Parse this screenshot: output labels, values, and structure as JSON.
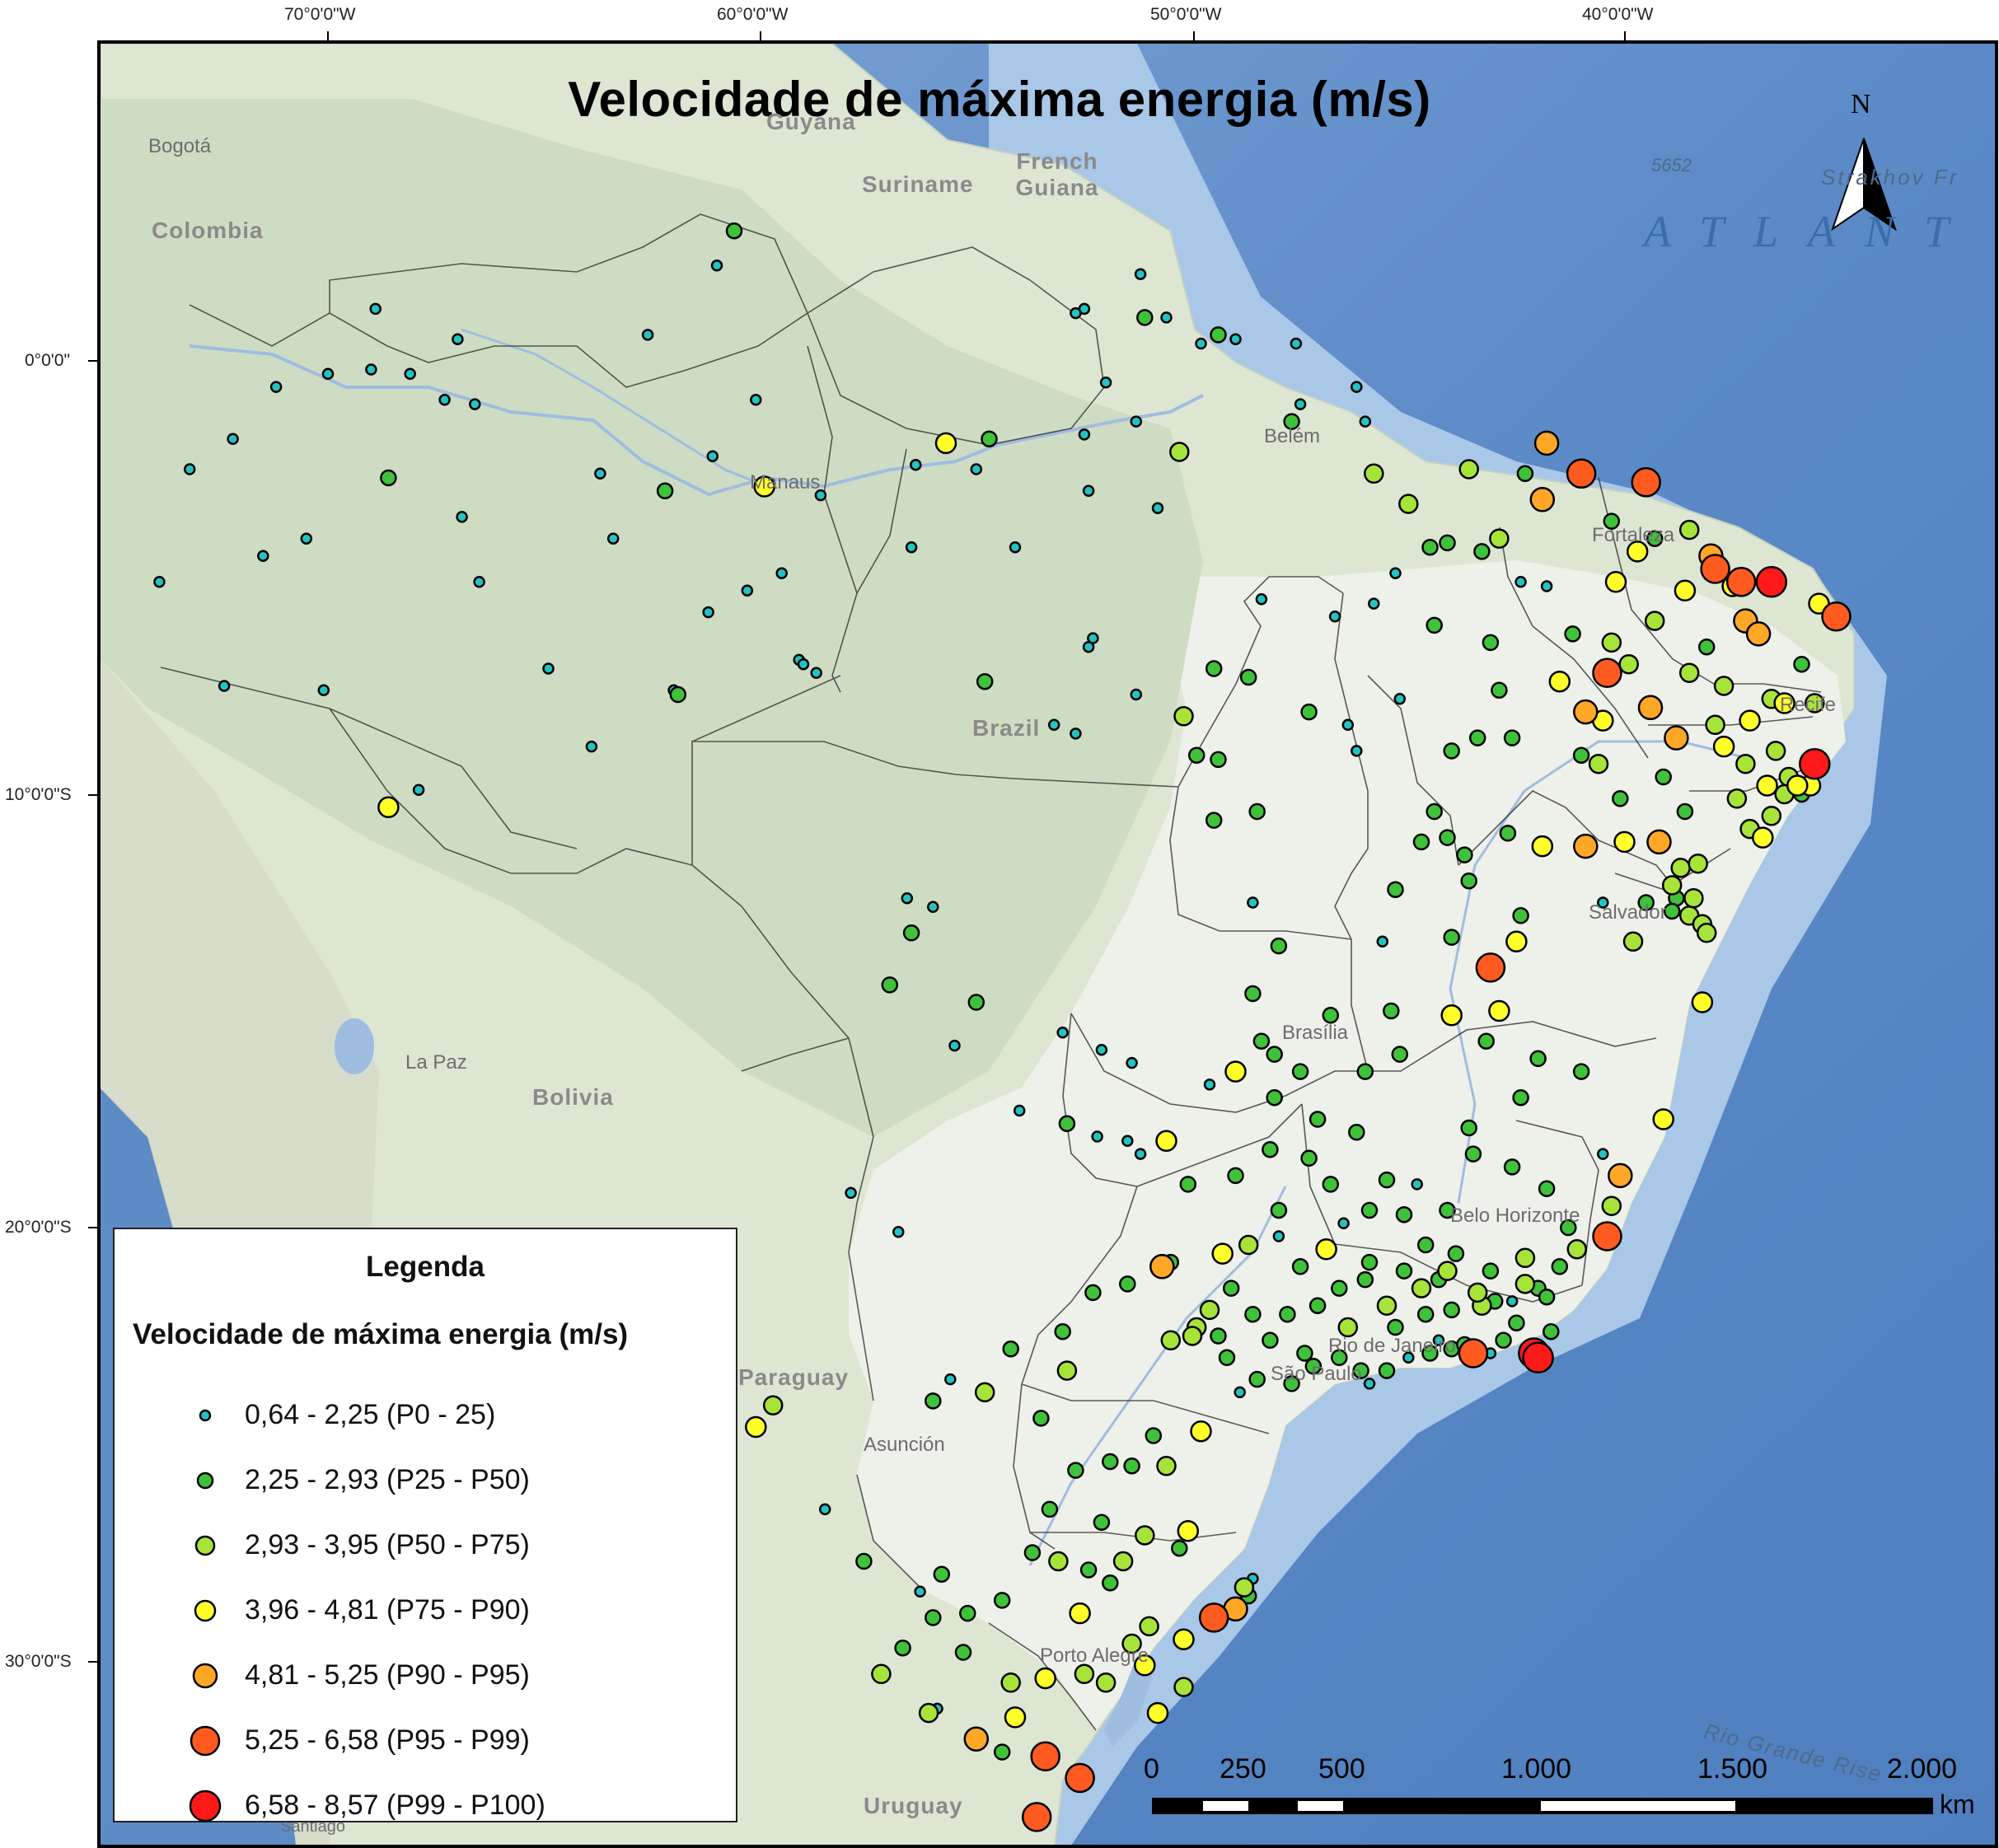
{
  "title": "Velocidade de máxima energia (m/s)",
  "north_label": "N",
  "grid_labels": {
    "longitude": [
      "70°0'0\"W",
      "60°0'0\"W",
      "50°0'0\"W",
      "40°0'0\"W"
    ],
    "latitude": [
      "0°0'0\"",
      "10°0'0\"S",
      "20°0'0\"S",
      "30°0'0\"S"
    ]
  },
  "basemap_labels": {
    "cities": [
      "Bogotá",
      "Manaus",
      "Belém",
      "Fortaleza",
      "Recife",
      "Salvador",
      "Brasília",
      "Belo Horizonte",
      "Rio de Janeiro",
      "São Paulo",
      "Porto Alegre",
      "La Paz",
      "Asunción",
      "Santiago"
    ],
    "countries": [
      "Colombia",
      "Guyana",
      "Suriname",
      "French Guiana",
      "Brazil",
      "Bolivia",
      "Paraguay",
      "Uruguay"
    ],
    "ocean": [
      "ATLANT",
      "5652",
      "Strakhov Fr",
      "Rio Grande Rise"
    ]
  },
  "legend": {
    "title": "Legenda",
    "subtitle": "Velocidade de máxima energia (m/s)",
    "classes": [
      {
        "label": "0,64 - 2,25 (P0 - 25)",
        "color": "#23c3c3",
        "size": 1
      },
      {
        "label": "2,25 - 2,93 (P25 - P50)",
        "color": "#3fc23a",
        "size": 2
      },
      {
        "label": "2,93 - 3,95 (P50 - P75)",
        "color": "#a8e33a",
        "size": 3
      },
      {
        "label": "3,96 - 4,81 (P75 - P90)",
        "color": "#ffff2a",
        "size": 4
      },
      {
        "label": "4,81 - 5,25 (P90 - P95)",
        "color": "#ffa726",
        "size": 5
      },
      {
        "label": "5,25 - 6,58 (P95 - P99)",
        "color": "#ff5a1f",
        "size": 6
      },
      {
        "label": "6,58 - 8,57 (P99 - P100)",
        "color": "#ff1a1a",
        "size": 7
      }
    ]
  },
  "scale_bar": {
    "labels": [
      "0",
      "250",
      "500",
      "1.000",
      "1.500",
      "2.000"
    ],
    "unit": "km"
  },
  "stations": [
    [
      -68.6,
      -2.7,
      2
    ],
    [
      -70.5,
      -4.1,
      1
    ],
    [
      -73.9,
      -5.1,
      1
    ],
    [
      -71.5,
      -4.5,
      1
    ],
    [
      -67.0,
      0.5,
      1
    ],
    [
      -68.9,
      1.2,
      1
    ],
    [
      -66.9,
      -3.6,
      1
    ],
    [
      -62.2,
      -3.0,
      2
    ],
    [
      -63.7,
      -2.6,
      1
    ],
    [
      -61.1,
      -2.2,
      1
    ],
    [
      -59.9,
      -2.9,
      4
    ],
    [
      -58.6,
      -3.1,
      1
    ],
    [
      -55.0,
      -2.5,
      1
    ],
    [
      -54.7,
      -1.8,
      2
    ],
    [
      -55.7,
      -1.9,
      4
    ],
    [
      -56.4,
      -2.4,
      1
    ],
    [
      -52.5,
      -1.7,
      1
    ],
    [
      -51.3,
      -1.4,
      1
    ],
    [
      -50.3,
      -2.1,
      3
    ],
    [
      -50.8,
      -3.4,
      1
    ],
    [
      -52.4,
      -3.0,
      1
    ],
    [
      -54.1,
      -4.3,
      1
    ],
    [
      -56.5,
      -4.3,
      1
    ],
    [
      -63.4,
      -4.1,
      1
    ],
    [
      -59.5,
      -4.9,
      1
    ],
    [
      -60.3,
      -5.3,
      1
    ],
    [
      -61.2,
      -5.8,
      1
    ],
    [
      -59.1,
      -6.9,
      1
    ],
    [
      -59.0,
      -7.0,
      1
    ],
    [
      -62.0,
      -7.6,
      1
    ],
    [
      -64.9,
      -7.1,
      1
    ],
    [
      -66.5,
      -5.1,
      1
    ],
    [
      -63.9,
      -8.9,
      1
    ],
    [
      -72.4,
      -7.5,
      1
    ],
    [
      -70.1,
      -7.6,
      1
    ],
    [
      -67.9,
      -9.9,
      1
    ],
    [
      -68.6,
      -10.3,
      4
    ],
    [
      -61.9,
      -7.7,
      2
    ],
    [
      -58.7,
      -7.2,
      1
    ],
    [
      -54.8,
      -7.4,
      2
    ],
    [
      -52.4,
      -6.6,
      1
    ],
    [
      -56.0,
      -12.6,
      1
    ],
    [
      -55.5,
      -15.8,
      1
    ],
    [
      -54.0,
      -17.3,
      1
    ],
    [
      -56.5,
      -13.2,
      2
    ],
    [
      -57.0,
      -14.4,
      2
    ],
    [
      -56.6,
      -12.4,
      1
    ],
    [
      -55.0,
      -14.8,
      2
    ],
    [
      -53.0,
      -15.5,
      1
    ],
    [
      -52.1,
      -15.9,
      1
    ],
    [
      -51.4,
      -16.2,
      1
    ],
    [
      -51.2,
      -18.3,
      1
    ],
    [
      -49.6,
      -16.7,
      1
    ],
    [
      -49.0,
      -16.4,
      4
    ],
    [
      -48.1,
      -16.0,
      2
    ],
    [
      -47.5,
      -16.4,
      2
    ],
    [
      -46.8,
      -15.1,
      2
    ],
    [
      -46.0,
      -16.4,
      2
    ],
    [
      -45.2,
      -16.0,
      2
    ],
    [
      -44.0,
      -15.1,
      4
    ],
    [
      -43.2,
      -15.7,
      2
    ],
    [
      -42.0,
      -16.1,
      2
    ],
    [
      -42.4,
      -17.0,
      2
    ],
    [
      -43.6,
      -17.7,
      2
    ],
    [
      -41.0,
      -16.4,
      2
    ],
    [
      -40.5,
      -18.3,
      1
    ],
    [
      -40.1,
      -18.8,
      5
    ],
    [
      -40.3,
      -19.5,
      3
    ],
    [
      -40.4,
      -20.2,
      6
    ],
    [
      -41.1,
      -20.5,
      3
    ],
    [
      -41.5,
      -20.9,
      2
    ],
    [
      -42.0,
      -21.4,
      2
    ],
    [
      -42.6,
      -21.7,
      1
    ],
    [
      -43.3,
      -21.8,
      3
    ],
    [
      -44.3,
      -21.2,
      2
    ],
    [
      -45.1,
      -21.0,
      2
    ],
    [
      -45.9,
      -20.8,
      2
    ],
    [
      -46.9,
      -20.5,
      4
    ],
    [
      -48.0,
      -20.2,
      1
    ],
    [
      -49.3,
      -20.6,
      4
    ],
    [
      -50.5,
      -20.8,
      2
    ],
    [
      -51.5,
      -21.3,
      2
    ],
    [
      -52.3,
      -21.5,
      2
    ],
    [
      -53.0,
      -22.4,
      2
    ],
    [
      -54.2,
      -22.8,
      2
    ],
    [
      -55.6,
      -23.5,
      1
    ],
    [
      -56.8,
      -20.1,
      1
    ],
    [
      -57.9,
      -19.2,
      1
    ],
    [
      -59.7,
      -24.1,
      3
    ],
    [
      -60.1,
      -24.6,
      4
    ],
    [
      -58.5,
      -26.5,
      1
    ],
    [
      -56.0,
      -24.0,
      2
    ],
    [
      -54.8,
      -23.8,
      3
    ],
    [
      -53.5,
      -24.4,
      2
    ],
    [
      -52.9,
      -23.3,
      3
    ],
    [
      -52.1,
      -26.8,
      2
    ],
    [
      -51.1,
      -27.1,
      3
    ],
    [
      -50.3,
      -27.4,
      2
    ],
    [
      -50.1,
      -27.0,
      4
    ],
    [
      -48.8,
      -28.3,
      3
    ],
    [
      -48.7,
      -28.5,
      2
    ],
    [
      -48.6,
      -28.1,
      1
    ],
    [
      -49.5,
      -29.0,
      6
    ],
    [
      -49.0,
      -28.8,
      5
    ],
    [
      -50.2,
      -29.5,
      4
    ],
    [
      -51.0,
      -29.2,
      3
    ],
    [
      -51.4,
      -29.6,
      3
    ],
    [
      -52.0,
      -30.5,
      3
    ],
    [
      -51.1,
      -30.1,
      4
    ],
    [
      -52.5,
      -30.3,
      3
    ],
    [
      -53.4,
      -30.4,
      4
    ],
    [
      -54.2,
      -30.5,
      3
    ],
    [
      -55.3,
      -29.8,
      2
    ],
    [
      -56.0,
      -29.0,
      2
    ],
    [
      -56.7,
      -29.7,
      2
    ],
    [
      -57.2,
      -30.3,
      3
    ],
    [
      -56.1,
      -31.2,
      3
    ],
    [
      -55.9,
      -31.1,
      1
    ],
    [
      -55.0,
      -31.8,
      5
    ],
    [
      -54.4,
      -32.1,
      2
    ],
    [
      -53.4,
      -32.2,
      6
    ],
    [
      -52.6,
      -32.7,
      6
    ],
    [
      -53.6,
      -33.6,
      6
    ],
    [
      -54.1,
      -31.3,
      4
    ],
    [
      -50.8,
      -31.2,
      4
    ],
    [
      -50.2,
      -30.6,
      3
    ],
    [
      -52.6,
      -28.9,
      4
    ],
    [
      -51.9,
      -28.2,
      2
    ],
    [
      -51.6,
      -27.7,
      3
    ],
    [
      -52.4,
      -27.9,
      2
    ],
    [
      -53.1,
      -27.7,
      3
    ],
    [
      -53.7,
      -27.5,
      2
    ],
    [
      -54.4,
      -28.6,
      2
    ],
    [
      -55.2,
      -28.9,
      2
    ],
    [
      -55.8,
      -28.0,
      2
    ],
    [
      -56.3,
      -28.4,
      1
    ],
    [
      -57.6,
      -27.7,
      2
    ],
    [
      -53.3,
      -26.5,
      2
    ],
    [
      -52.7,
      -25.6,
      2
    ],
    [
      -51.9,
      -25.4,
      2
    ],
    [
      -51.4,
      -25.5,
      2
    ],
    [
      -50.6,
      -25.5,
      3
    ],
    [
      -50.9,
      -24.8,
      2
    ],
    [
      -49.8,
      -24.7,
      4
    ],
    [
      -48.9,
      -23.8,
      1
    ],
    [
      -48.5,
      -23.5,
      2
    ],
    [
      -47.7,
      -23.6,
      2
    ],
    [
      -47.4,
      -22.9,
      2
    ],
    [
      -47.2,
      -23.2,
      2
    ],
    [
      -46.6,
      -23.0,
      2
    ],
    [
      -46.4,
      -22.3,
      3
    ],
    [
      -46.1,
      -23.3,
      2
    ],
    [
      -45.9,
      -23.6,
      1
    ],
    [
      -45.5,
      -23.3,
      2
    ],
    [
      -45.0,
      -23.0,
      1
    ],
    [
      -44.5,
      -22.9,
      2
    ],
    [
      -44.3,
      -22.6,
      1
    ],
    [
      -44.0,
      -22.8,
      2
    ],
    [
      -43.7,
      -22.7,
      2
    ],
    [
      -43.5,
      -22.9,
      6
    ],
    [
      -43.3,
      -22.9,
      1
    ],
    [
      -43.1,
      -22.9,
      1
    ],
    [
      -42.8,
      -22.6,
      2
    ],
    [
      -42.1,
      -22.9,
      7
    ],
    [
      -42.0,
      -23.0,
      7
    ],
    [
      -42.5,
      -22.2,
      2
    ],
    [
      -41.7,
      -22.4,
      2
    ],
    [
      -41.8,
      -21.6,
      2
    ],
    [
      -42.3,
      -21.3,
      3
    ],
    [
      -43.1,
      -21.0,
      2
    ],
    [
      -43.9,
      -20.6,
      2
    ],
    [
      -44.6,
      -20.4,
      2
    ],
    [
      -45.1,
      -19.7,
      2
    ],
    [
      -45.9,
      -19.6,
      2
    ],
    [
      -46.5,
      -19.9,
      1
    ],
    [
      -46.8,
      -19.0,
      2
    ],
    [
      -47.3,
      -18.4,
      2
    ],
    [
      -48.2,
      -18.2,
      2
    ],
    [
      -49.0,
      -18.8,
      2
    ],
    [
      -50.1,
      -19.0,
      2
    ],
    [
      -50.6,
      -18.0,
      4
    ],
    [
      -51.5,
      -18.0,
      1
    ],
    [
      -52.2,
      -17.9,
      1
    ],
    [
      -52.9,
      -17.6,
      2
    ],
    [
      -48.7,
      -20.4,
      3
    ],
    [
      -48.0,
      -19.6,
      2
    ],
    [
      -47.5,
      -20.9,
      2
    ],
    [
      -46.6,
      -21.4,
      2
    ],
    [
      -45.5,
      -21.8,
      3
    ],
    [
      -44.7,
      -21.4,
      3
    ],
    [
      -44.1,
      -21.0,
      3
    ],
    [
      -43.4,
      -21.5,
      3
    ],
    [
      -49.1,
      -21.4,
      2
    ],
    [
      -49.6,
      -21.9,
      3
    ],
    [
      -49.9,
      -22.3,
      3
    ],
    [
      -50.5,
      -22.6,
      3
    ],
    [
      -50.0,
      -22.5,
      3
    ],
    [
      -50.7,
      -20.9,
      5
    ],
    [
      -49.4,
      -22.5,
      2
    ],
    [
      -49.2,
      -23.0,
      2
    ],
    [
      -48.2,
      -22.6,
      2
    ],
    [
      -47.8,
      -22.0,
      2
    ],
    [
      -48.6,
      -22.0,
      2
    ],
    [
      -47.1,
      -21.8,
      2
    ],
    [
      -46.0,
      -21.2,
      2
    ],
    [
      -45.3,
      -22.3,
      2
    ],
    [
      -44.6,
      -22.0,
      2
    ],
    [
      -44.0,
      -21.9,
      2
    ],
    [
      -43.0,
      -21.7,
      2
    ],
    [
      -42.3,
      -20.7,
      3
    ],
    [
      -41.3,
      -20.0,
      2
    ],
    [
      -41.8,
      -19.1,
      2
    ],
    [
      -42.6,
      -18.6,
      2
    ],
    [
      -43.5,
      -18.3,
      2
    ],
    [
      -44.1,
      -19.6,
      2
    ],
    [
      -44.8,
      -19.0,
      1
    ],
    [
      -45.5,
      -18.9,
      2
    ],
    [
      -46.2,
      -17.8,
      2
    ],
    [
      -47.1,
      -17.5,
      2
    ],
    [
      -48.1,
      -17.0,
      2
    ],
    [
      -48.4,
      -15.7,
      2
    ],
    [
      -48.6,
      -14.6,
      2
    ],
    [
      -48.0,
      -13.5,
      2
    ],
    [
      -48.6,
      -12.5,
      1
    ],
    [
      -48.5,
      -10.4,
      2
    ],
    [
      -49.5,
      -10.6,
      2
    ],
    [
      -49.4,
      -9.2,
      2
    ],
    [
      -49.5,
      -7.1,
      2
    ],
    [
      -48.7,
      -7.3,
      2
    ],
    [
      -48.4,
      -5.5,
      1
    ],
    [
      -46.7,
      -5.9,
      1
    ],
    [
      -45.8,
      -5.6,
      1
    ],
    [
      -44.4,
      -6.1,
      2
    ],
    [
      -43.1,
      -6.5,
      2
    ],
    [
      -43.3,
      -4.4,
      2
    ],
    [
      -42.4,
      -5.1,
      1
    ],
    [
      -41.8,
      -5.2,
      1
    ],
    [
      -44.1,
      -4.2,
      2
    ],
    [
      -45.0,
      -3.3,
      3
    ],
    [
      -43.6,
      -2.5,
      3
    ],
    [
      -42.3,
      -2.6,
      2
    ],
    [
      -41.8,
      -1.9,
      5
    ],
    [
      -41.0,
      -2.6,
      6
    ],
    [
      -39.5,
      -2.8,
      6
    ],
    [
      -40.3,
      -3.7,
      2
    ],
    [
      -39.3,
      -4.1,
      2
    ],
    [
      -38.5,
      -3.9,
      3
    ],
    [
      -38.0,
      -4.5,
      5
    ],
    [
      -37.3,
      -5.1,
      6
    ],
    [
      -36.6,
      -5.1,
      7
    ],
    [
      -37.9,
      -4.8,
      6
    ],
    [
      -37.5,
      -5.2,
      4
    ],
    [
      -38.6,
      -5.3,
      4
    ],
    [
      -37.2,
      -6.0,
      5
    ],
    [
      -36.9,
      -6.3,
      5
    ],
    [
      -35.5,
      -5.6,
      4
    ],
    [
      -35.1,
      -5.9,
      6
    ],
    [
      -35.9,
      -7.0,
      2
    ],
    [
      -35.6,
      -7.9,
      3
    ],
    [
      -36.6,
      -7.8,
      3
    ],
    [
      -37.1,
      -8.3,
      4
    ],
    [
      -36.3,
      -7.9,
      4
    ],
    [
      -37.9,
      -8.4,
      3
    ],
    [
      -38.8,
      -8.7,
      5
    ],
    [
      -37.7,
      -8.9,
      4
    ],
    [
      -37.2,
      -9.3,
      3
    ],
    [
      -36.5,
      -9.0,
      3
    ],
    [
      -35.6,
      -9.3,
      7
    ],
    [
      -35.7,
      -9.8,
      4
    ],
    [
      -36.2,
      -9.6,
      3
    ],
    [
      -36.7,
      -9.8,
      4
    ],
    [
      -36.3,
      -10.0,
      3
    ],
    [
      -36.0,
      -9.8,
      4
    ],
    [
      -37.4,
      -10.1,
      3
    ],
    [
      -37.1,
      -10.8,
      3
    ],
    [
      -36.8,
      -11.0,
      4
    ],
    [
      -35.9,
      -10.0,
      2
    ],
    [
      -36.6,
      -10.5,
      3
    ],
    [
      -38.6,
      -10.4,
      2
    ],
    [
      -39.2,
      -11.1,
      5
    ],
    [
      -40.0,
      -11.1,
      4
    ],
    [
      -40.9,
      -11.2,
      5
    ],
    [
      -41.9,
      -11.2,
      4
    ],
    [
      -42.7,
      -10.9,
      2
    ],
    [
      -43.7,
      -11.4,
      2
    ],
    [
      -44.1,
      -11.0,
      2
    ],
    [
      -44.4,
      -10.4,
      2
    ],
    [
      -44.7,
      -11.1,
      2
    ],
    [
      -40.5,
      -12.5,
      1
    ],
    [
      -38.9,
      -12.1,
      3
    ],
    [
      -38.8,
      -12.4,
      2
    ],
    [
      -38.9,
      -12.7,
      2
    ],
    [
      -38.5,
      -12.8,
      3
    ],
    [
      -38.4,
      -12.4,
      3
    ],
    [
      -38.2,
      -13.0,
      3
    ],
    [
      -38.1,
      -13.2,
      3
    ],
    [
      -39.8,
      -13.4,
      3
    ],
    [
      -38.7,
      -11.7,
      3
    ],
    [
      -38.3,
      -11.6,
      3
    ],
    [
      -42.5,
      -13.4,
      4
    ],
    [
      -42.4,
      -12.8,
      2
    ],
    [
      -43.6,
      -12.0,
      2
    ],
    [
      -44.0,
      -13.3,
      2
    ],
    [
      -45.3,
      -12.2,
      2
    ],
    [
      -45.6,
      -13.4,
      1
    ],
    [
      -43.1,
      -14.0,
      6
    ],
    [
      -42.9,
      -15.0,
      4
    ],
    [
      -45.4,
      -15.0,
      2
    ],
    [
      -38.2,
      -14.8,
      4
    ],
    [
      -39.1,
      -17.5,
      4
    ],
    [
      -39.5,
      -12.5,
      2
    ],
    [
      -40.1,
      -10.1,
      2
    ],
    [
      -39.1,
      -9.6,
      2
    ],
    [
      -39.4,
      -8.0,
      5
    ],
    [
      -38.5,
      -7.2,
      3
    ],
    [
      -38.1,
      -6.6,
      2
    ],
    [
      -37.7,
      -7.5,
      3
    ],
    [
      -39.9,
      -7.0,
      3
    ],
    [
      -39.3,
      -6.0,
      3
    ],
    [
      -40.3,
      -6.5,
      3
    ],
    [
      -40.4,
      -7.2,
      6
    ],
    [
      -40.9,
      -8.1,
      5
    ],
    [
      -41.5,
      -7.4,
      4
    ],
    [
      -41.2,
      -6.3,
      2
    ],
    [
      -40.2,
      -5.1,
      4
    ],
    [
      -39.7,
      -4.4,
      4
    ],
    [
      -40.5,
      -8.3,
      4
    ],
    [
      -40.6,
      -9.3,
      3
    ],
    [
      -41.0,
      -9.1,
      2
    ],
    [
      -42.6,
      -8.7,
      2
    ],
    [
      -43.4,
      -8.7,
      2
    ],
    [
      -42.9,
      -7.6,
      2
    ],
    [
      -44.0,
      -9.0,
      2
    ],
    [
      -45.2,
      -7.8,
      1
    ],
    [
      -46.4,
      -8.4,
      1
    ],
    [
      -47.3,
      -8.1,
      2
    ],
    [
      -46.2,
      -9.0,
      1
    ],
    [
      -50.2,
      -8.2,
      3
    ],
    [
      -51.3,
      -7.7,
      1
    ],
    [
      -52.3,
      -6.4,
      1
    ],
    [
      -52.7,
      -8.6,
      1
    ],
    [
      -53.2,
      -8.4,
      1
    ],
    [
      -49.9,
      -9.1,
      2
    ],
    [
      -41.9,
      -3.2,
      5
    ],
    [
      -44.5,
      -4.3,
      2
    ],
    [
      -45.3,
      -4.9,
      1
    ],
    [
      -42.9,
      -4.1,
      3
    ],
    [
      -45.8,
      -2.6,
      3
    ],
    [
      -46.0,
      -1.4,
      1
    ],
    [
      -46.2,
      -0.6,
      1
    ],
    [
      -47.5,
      -1.0,
      1
    ],
    [
      -47.7,
      -1.4,
      2
    ],
    [
      -49.4,
      0.6,
      2
    ],
    [
      -50.6,
      1.0,
      1
    ],
    [
      -51.1,
      1.0,
      2
    ],
    [
      -52.5,
      1.2,
      1
    ],
    [
      -51.2,
      2.0,
      1
    ],
    [
      -52.7,
      1.1,
      1
    ],
    [
      -60.6,
      3.0,
      2
    ],
    [
      -61.0,
      2.2,
      1
    ],
    [
      -62.6,
      0.6,
      1
    ],
    [
      -66.6,
      -1.0,
      1
    ],
    [
      -67.3,
      -0.9,
      1
    ],
    [
      -69.0,
      -0.2,
      1
    ],
    [
      -68.1,
      -0.3,
      1
    ],
    [
      -70.0,
      -0.3,
      1
    ],
    [
      -71.2,
      -0.6,
      1
    ],
    [
      -72.2,
      -1.8,
      1
    ],
    [
      -73.2,
      -2.5,
      1
    ],
    [
      -60.1,
      -0.9,
      1
    ],
    [
      -49.8,
      0.4,
      1
    ],
    [
      -52.0,
      -0.5,
      1
    ],
    [
      -49.0,
      0.5,
      1
    ],
    [
      -47.6,
      0.4,
      1
    ]
  ]
}
